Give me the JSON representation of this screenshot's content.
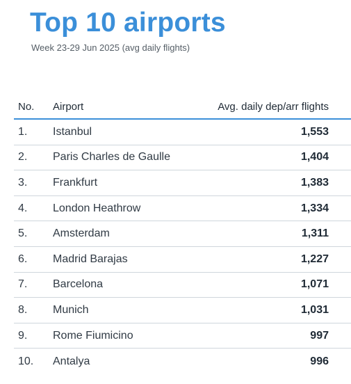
{
  "title": "Top 10 airports",
  "subtitle": "Week 23-29 Jun 2025 (avg daily flights)",
  "table": {
    "headers": {
      "no": "No.",
      "airport": "Airport",
      "flights": "Avg. daily dep/arr flights"
    },
    "rows": [
      {
        "no": "1.",
        "airport": "Istanbul",
        "flights": "1,553"
      },
      {
        "no": "2.",
        "airport": "Paris Charles de Gaulle",
        "flights": "1,404"
      },
      {
        "no": "3.",
        "airport": "Frankfurt",
        "flights": "1,383"
      },
      {
        "no": "4.",
        "airport": "London Heathrow",
        "flights": "1,334"
      },
      {
        "no": "5.",
        "airport": "Amsterdam",
        "flights": "1,311"
      },
      {
        "no": "6.",
        "airport": "Madrid Barajas",
        "flights": "1,227"
      },
      {
        "no": "7.",
        "airport": "Barcelona",
        "flights": "1,071"
      },
      {
        "no": "8.",
        "airport": "Munich",
        "flights": "1,031"
      },
      {
        "no": "9.",
        "airport": "Rome Fiumicino",
        "flights": "997"
      },
      {
        "no": "10.",
        "airport": "Antalya",
        "flights": "996"
      }
    ]
  },
  "colors": {
    "title": "#3b8fd9",
    "header_rule": "#3b8fd9",
    "row_rule": "#cfd6dc",
    "text": "#303a44"
  }
}
